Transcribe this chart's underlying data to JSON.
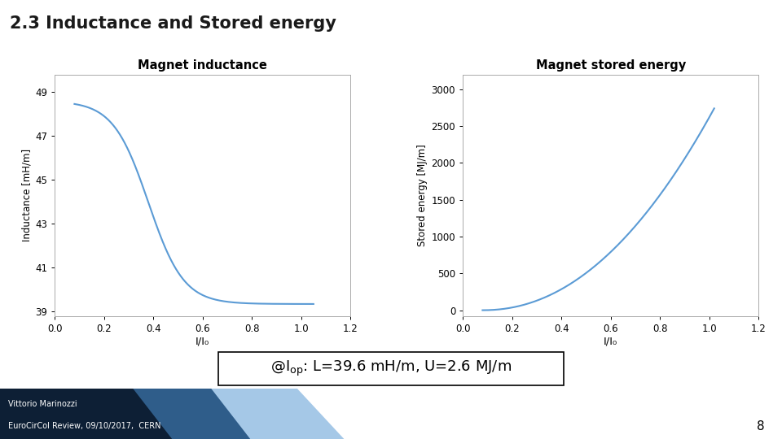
{
  "title": "2.3 Inductance and Stored energy",
  "title_fontsize": 15,
  "title_fontweight": "bold",
  "background_color": "#ffffff",
  "plot1_title": "Magnet inductance",
  "plot1_xlabel": "I/I₀",
  "plot1_ylabel": "Inductance [mH/m]",
  "plot1_xlim": [
    0.0,
    1.2
  ],
  "plot1_ylim": [
    38.8,
    49.8
  ],
  "plot1_yticks": [
    39,
    41,
    43,
    45,
    47,
    49
  ],
  "plot1_xticks": [
    0.0,
    0.2,
    0.4,
    0.6,
    0.8,
    1.0,
    1.2
  ],
  "plot2_title": "Magnet stored energy",
  "plot2_xlabel": "I/I₀",
  "plot2_ylabel": "Stored energy [MJ/m]",
  "plot2_xlim": [
    0.0,
    1.2
  ],
  "plot2_ylim": [
    -80,
    3200
  ],
  "plot2_yticks": [
    0,
    500,
    1000,
    1500,
    2000,
    2500,
    3000
  ],
  "plot2_xticks": [
    0.0,
    0.2,
    0.4,
    0.6,
    0.8,
    1.0,
    1.2
  ],
  "line_color": "#5b9bd5",
  "line_width": 1.5,
  "annotation_fontsize": 13,
  "footer_text1": "Vittorio Marinozzi",
  "footer_text2": "EuroCirCol Review, 09/10/2017,  CERN",
  "page_number": "8",
  "footer_dark": "#1a3a5c",
  "footer_mid": "#2e6ea6",
  "footer_light": "#7fb3d3"
}
